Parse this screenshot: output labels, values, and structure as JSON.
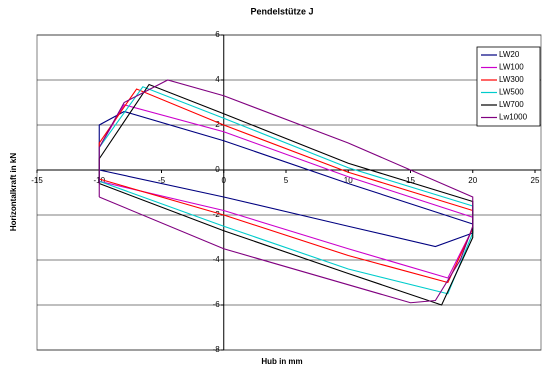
{
  "chart_data": {
    "type": "line",
    "title": "Pendelstütze J",
    "x_label": "Hub in mm",
    "y_label": "Horizontalkraft in kN",
    "xlim": [
      -15,
      25
    ],
    "xticks": [
      -15,
      -10,
      -5,
      0,
      5,
      10,
      15,
      20,
      25
    ],
    "ylim": [
      -8,
      6
    ],
    "yticks": [
      -8,
      -6,
      -4,
      -2,
      0,
      2,
      4,
      6
    ],
    "grid": true,
    "legend": "upper right",
    "series": [
      {
        "name": "LW20",
        "color": "#000080",
        "x": [
          -10,
          -10,
          -8,
          0,
          10,
          20,
          20,
          17,
          10,
          0,
          -10,
          -10
        ],
        "values": [
          0,
          2,
          2.6,
          1.3,
          -0.6,
          -2.4,
          -2.8,
          -3.4,
          -2.5,
          -1.2,
          0,
          0
        ]
      },
      {
        "name": "LW100",
        "color": "#cc00cc",
        "x": [
          -10,
          -10,
          -8,
          0,
          10,
          20,
          20,
          18,
          10,
          0,
          -10,
          -10
        ],
        "values": [
          -0.5,
          1,
          2.9,
          1.7,
          -0.3,
          -2.1,
          -2.6,
          -4.8,
          -3.5,
          -1.8,
          -0.5,
          -0.5
        ]
      },
      {
        "name": "LW300",
        "color": "#ff0000",
        "x": [
          -10,
          -10,
          -7,
          0,
          10,
          20,
          20,
          18,
          10,
          0,
          -10,
          -10
        ],
        "values": [
          -0.4,
          1.2,
          3.6,
          2,
          -0.1,
          -1.8,
          -2.6,
          -5,
          -3.8,
          -2,
          -0.4,
          -0.4
        ]
      },
      {
        "name": "LW500",
        "color": "#00cccc",
        "x": [
          -10,
          -10,
          -6.5,
          0,
          10,
          20,
          20,
          18,
          10,
          0,
          -10,
          -10
        ],
        "values": [
          -0.5,
          1,
          3.7,
          2.3,
          0.1,
          -1.6,
          -2.8,
          -5.5,
          -4.4,
          -2.5,
          -0.5,
          -0.5
        ]
      },
      {
        "name": "LW700",
        "color": "#000000",
        "x": [
          -10,
          -10,
          -6,
          0,
          10,
          20,
          20,
          17.5,
          10,
          0,
          -10,
          -10
        ],
        "values": [
          -0.6,
          0.5,
          3.8,
          2.5,
          0.3,
          -1.4,
          -3,
          -6,
          -4.6,
          -2.7,
          -0.6,
          -0.6
        ]
      },
      {
        "name": "Lw1000",
        "color": "#800080",
        "x": [
          -10,
          -10,
          -8,
          -4.5,
          0,
          10,
          20,
          20,
          19,
          17,
          15,
          0,
          -10,
          -10
        ],
        "values": [
          -1.2,
          1,
          3,
          4,
          3.3,
          1.2,
          -1.2,
          -2.5,
          -4,
          -5.8,
          -5.9,
          -3.5,
          -1.2,
          -1.2
        ]
      }
    ]
  }
}
